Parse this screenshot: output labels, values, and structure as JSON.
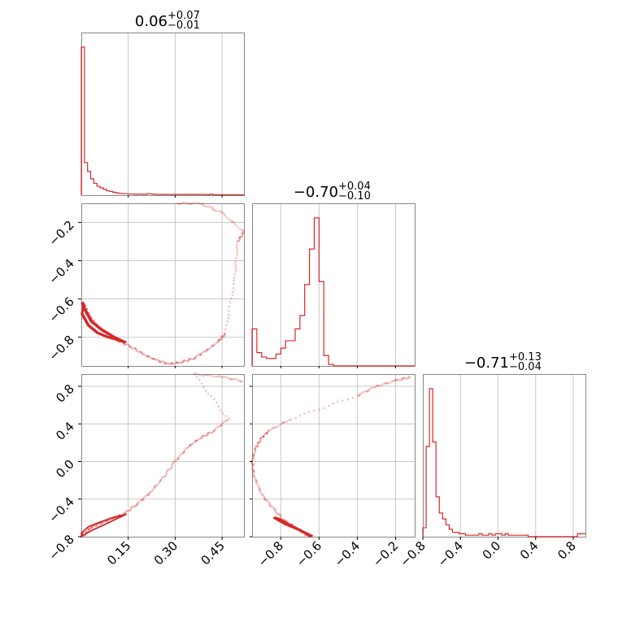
{
  "chart_data": {
    "type": "corner",
    "color": "#d62728",
    "grid": true,
    "titles": [
      {
        "main": "0.06",
        "plus": "+0.07",
        "minus": "−0.01"
      },
      {
        "main": "−0.70",
        "plus": "+0.04",
        "minus": "−0.10"
      },
      {
        "main": "−0.71",
        "plus": "+0.13",
        "minus": "−0.04"
      }
    ],
    "ranges": [
      [
        0.0,
        0.52
      ],
      [
        -0.95,
        -0.1
      ],
      [
        -0.8,
        0.93
      ]
    ],
    "ticks": {
      "p0": {
        "values": [
          0.15,
          0.3,
          0.45
        ],
        "labels": [
          "0.15",
          "0.30",
          "0.45"
        ]
      },
      "p1": {
        "values": [
          -0.8,
          -0.6,
          -0.4,
          -0.2
        ],
        "labels": [
          "−0.8",
          "−0.6",
          "−0.4",
          "−0.2"
        ]
      },
      "p2": {
        "values": [
          -0.8,
          -0.4,
          0.0,
          0.4,
          0.8
        ],
        "labels": [
          "−0.8",
          "−0.4",
          "0.0",
          "0.4",
          "0.8"
        ]
      }
    },
    "histograms": [
      {
        "param": 0,
        "bin_width": 0.01,
        "x_start": 0.0,
        "heights": [
          1.0,
          0.22,
          0.16,
          0.11,
          0.08,
          0.06,
          0.05,
          0.04,
          0.03,
          0.025,
          0.02,
          0.015,
          0.012,
          0.01,
          0.01,
          0.008,
          0.008,
          0.006,
          0.008,
          0.006,
          0.006,
          0.01,
          0.008,
          0.006,
          0.005,
          0.005,
          0.005,
          0.005,
          0.005,
          0.005,
          0.005,
          0.005,
          0.005,
          0.005,
          0.005,
          0.005,
          0.005,
          0.005,
          0.005,
          0.005,
          0.003,
          0.006,
          0.003,
          0.003,
          0.003,
          0.002,
          0.002,
          0.002,
          0.002,
          0.002,
          0.002,
          0.002
        ]
      },
      {
        "param": 1,
        "bin_width": 0.025,
        "x_start": -0.95,
        "heights": [
          0.25,
          0.09,
          0.06,
          0.05,
          0.05,
          0.08,
          0.12,
          0.17,
          0.17,
          0.25,
          0.34,
          0.55,
          0.79,
          1.0,
          0.57,
          0.07,
          0.01,
          0.0,
          0.0,
          0.0,
          0.0,
          0.0,
          0.0,
          0.0,
          0.0,
          0.0,
          0.0,
          0.0,
          0.0,
          0.0,
          0.0,
          0.0,
          0.0,
          0.0,
          0.0,
          0.0,
          0.01,
          0.02,
          0.02,
          0.02,
          0.02,
          0.02,
          0.02,
          0.02
        ]
      },
      {
        "param": 2,
        "bin_width": 0.035,
        "x_start": -0.8,
        "heights": [
          0.06,
          0.61,
          1.0,
          0.64,
          0.27,
          0.16,
          0.12,
          0.08,
          0.05,
          0.03,
          0.03,
          0.02,
          0.02,
          0.01,
          0.01,
          0.01,
          0.01,
          0.02,
          0.01,
          0.01,
          0.02,
          0.01,
          0.02,
          0.02,
          0.01,
          0.02,
          0.01,
          0.01,
          0.01,
          0.01,
          0.01,
          0.01,
          0.0,
          0.0,
          0.0,
          0.0,
          0.0,
          0.0,
          0.0,
          0.0,
          0.0,
          0.0,
          0.0,
          0.0,
          0.0,
          0.0,
          0.0,
          0.02,
          0.02,
          0.02
        ]
      }
    ],
    "pair_samples": [
      {
        "x_param": 0,
        "y_param": 1,
        "points": [
          [
            0.01,
            -0.63
          ],
          [
            0.02,
            -0.67
          ],
          [
            0.03,
            -0.7
          ],
          [
            0.05,
            -0.74
          ],
          [
            0.08,
            -0.78
          ],
          [
            0.12,
            -0.82
          ],
          [
            0.16,
            -0.85
          ],
          [
            0.2,
            -0.89
          ],
          [
            0.24,
            -0.92
          ],
          [
            0.28,
            -0.94
          ],
          [
            0.32,
            -0.93
          ],
          [
            0.36,
            -0.91
          ],
          [
            0.4,
            -0.87
          ],
          [
            0.44,
            -0.82
          ],
          [
            0.46,
            -0.78
          ],
          [
            0.49,
            -0.5
          ],
          [
            0.5,
            -0.3
          ],
          [
            0.52,
            -0.25
          ],
          [
            0.45,
            -0.15
          ],
          [
            0.38,
            -0.1
          ],
          [
            0.3,
            -0.1
          ]
        ]
      },
      {
        "x_param": 0,
        "y_param": 2,
        "points": [
          [
            0.01,
            -0.78
          ],
          [
            0.03,
            -0.7
          ],
          [
            0.06,
            -0.66
          ],
          [
            0.1,
            -0.61
          ],
          [
            0.14,
            -0.55
          ],
          [
            0.18,
            -0.45
          ],
          [
            0.22,
            -0.33
          ],
          [
            0.26,
            -0.18
          ],
          [
            0.3,
            0.0
          ],
          [
            0.34,
            0.15
          ],
          [
            0.38,
            0.25
          ],
          [
            0.42,
            0.32
          ],
          [
            0.47,
            0.45
          ],
          [
            0.36,
            0.93
          ],
          [
            0.45,
            0.9
          ],
          [
            0.52,
            0.85
          ]
        ]
      },
      {
        "x_param": 1,
        "y_param": 2,
        "points": [
          [
            -0.67,
            -0.78
          ],
          [
            -0.72,
            -0.7
          ],
          [
            -0.78,
            -0.63
          ],
          [
            -0.84,
            -0.5
          ],
          [
            -0.9,
            -0.35
          ],
          [
            -0.94,
            -0.15
          ],
          [
            -0.95,
            0.0
          ],
          [
            -0.93,
            0.15
          ],
          [
            -0.9,
            0.25
          ],
          [
            -0.86,
            0.33
          ],
          [
            -0.75,
            0.45
          ],
          [
            -0.4,
            0.7
          ],
          [
            -0.3,
            0.8
          ],
          [
            -0.2,
            0.86
          ],
          [
            -0.12,
            0.9
          ]
        ]
      }
    ],
    "pair_contours": [
      {
        "x_param": 0,
        "y_param": 1,
        "points": [
          [
            0.0,
            -0.62
          ],
          [
            0.01,
            -0.66
          ],
          [
            0.03,
            -0.72
          ],
          [
            0.06,
            -0.76
          ],
          [
            0.1,
            -0.8
          ],
          [
            0.14,
            -0.83
          ],
          [
            0.12,
            -0.82
          ],
          [
            0.08,
            -0.8
          ],
          [
            0.05,
            -0.78
          ],
          [
            0.02,
            -0.74
          ],
          [
            0.0,
            -0.68
          ],
          [
            0.005,
            -0.63
          ]
        ]
      },
      {
        "x_param": 0,
        "y_param": 2,
        "points": [
          [
            0.0,
            -0.8
          ],
          [
            0.03,
            -0.74
          ],
          [
            0.07,
            -0.68
          ],
          [
            0.12,
            -0.6
          ],
          [
            0.14,
            -0.57
          ],
          [
            0.1,
            -0.6
          ],
          [
            0.05,
            -0.66
          ],
          [
            0.02,
            -0.7
          ],
          [
            0.0,
            -0.76
          ]
        ]
      },
      {
        "x_param": 1,
        "y_param": 2,
        "points": [
          [
            -0.65,
            -0.8
          ],
          [
            -0.68,
            -0.76
          ],
          [
            -0.72,
            -0.72
          ],
          [
            -0.78,
            -0.67
          ],
          [
            -0.84,
            -0.6
          ],
          [
            -0.81,
            -0.62
          ],
          [
            -0.76,
            -0.68
          ],
          [
            -0.7,
            -0.74
          ],
          [
            -0.66,
            -0.78
          ],
          [
            -0.64,
            -0.8
          ]
        ]
      }
    ]
  }
}
